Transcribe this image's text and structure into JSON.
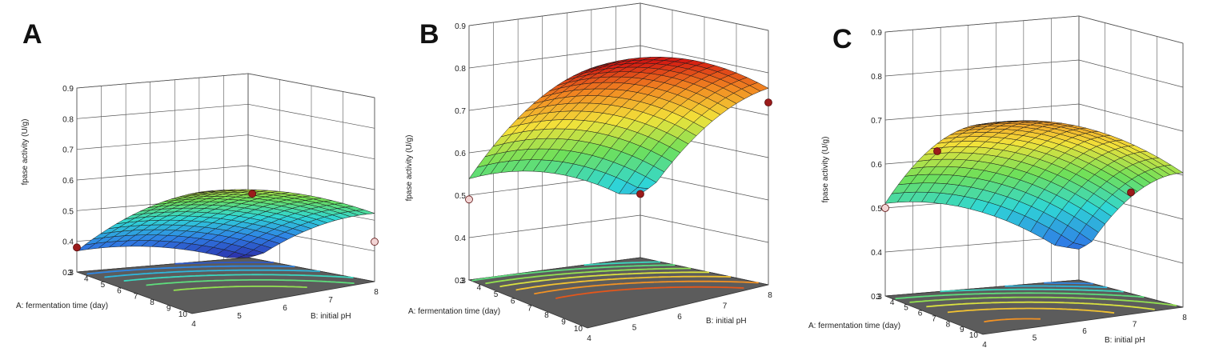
{
  "colors": {
    "floor": "#5c5c5c",
    "grid": "#555555",
    "design_point_above": "#9b1b1b",
    "design_point_below": "#f2d4d4",
    "colormap": [
      "#2b2ba8",
      "#2f7fe6",
      "#2fd6d6",
      "#6fe05a",
      "#f2e23a",
      "#f28a22",
      "#d41a12"
    ]
  },
  "chart_data": [
    {
      "panel_label": "A",
      "type": "surface3d",
      "zlabel": "fpase activity (U/g)",
      "xlabel": "A: fermentation time (day)",
      "ylabel": "B: initial pH",
      "z_ticks": [
        "0.3",
        "0.4",
        "0.5",
        "0.6",
        "0.7",
        "0.8",
        "0.9"
      ],
      "x_ticks": [
        "3",
        "4",
        "5",
        "6",
        "7",
        "8",
        "9",
        "10"
      ],
      "y_ticks": [
        "4",
        "5",
        "6",
        "7",
        "8"
      ],
      "zlim": [
        0.3,
        0.9
      ],
      "xlim": [
        3,
        10
      ],
      "ylim": [
        4,
        8
      ],
      "colorlim": [
        0.3,
        0.85
      ],
      "corners": {
        "x3_y4": 0.34,
        "x3_y8": 0.56,
        "x10_y4": 0.3,
        "x10_y8": 0.49
      },
      "max_point": {
        "x": 5.2,
        "y": 6.8,
        "z": 0.58
      },
      "design_points": [
        {
          "x": 3,
          "y": 4,
          "z": 0.38,
          "above": true
        },
        {
          "x": 5,
          "y": 8,
          "z": 0.62,
          "above": true
        },
        {
          "x": 10,
          "y": 8,
          "z": 0.43,
          "above": false
        }
      ]
    },
    {
      "panel_label": "B",
      "type": "surface3d",
      "zlabel": "fpase activity (U/g)",
      "xlabel": "A: fermentation time (day)",
      "ylabel": "B: initial pH",
      "z_ticks": [
        "0.3",
        "0.4",
        "0.5",
        "0.6",
        "0.7",
        "0.8",
        "0.9"
      ],
      "x_ticks": [
        "3",
        "4",
        "5",
        "6",
        "7",
        "8",
        "9",
        "10"
      ],
      "y_ticks": [
        "4",
        "5",
        "6",
        "7",
        "8"
      ],
      "zlim": [
        0.3,
        0.9
      ],
      "xlim": [
        3,
        10
      ],
      "ylim": [
        4,
        8
      ],
      "colorlim": [
        0.3,
        0.85
      ],
      "corners": {
        "x3_y4": 0.5,
        "x3_y8": 0.76,
        "x10_y4": 0.45,
        "x10_y8": 0.72
      },
      "max_point": {
        "x": 5.2,
        "y": 6.8,
        "z": 0.81
      },
      "design_points": [
        {
          "x": 3,
          "y": 4,
          "z": 0.49,
          "above": false
        },
        {
          "x": 10,
          "y": 4,
          "z": 0.45,
          "above": true
        },
        {
          "x": 10,
          "y": 8,
          "z": 0.73,
          "above": true
        }
      ]
    },
    {
      "panel_label": "C",
      "type": "surface3d",
      "zlabel": "fpase activity (U/g)",
      "xlabel": "A: fermentation time (day)",
      "ylabel": "B: initial pH",
      "z_ticks": [
        "0.3",
        "0.4",
        "0.5",
        "0.6",
        "0.7",
        "0.8",
        "0.9"
      ],
      "x_ticks": [
        "3",
        "4",
        "5",
        "6",
        "7",
        "8",
        "9",
        "10"
      ],
      "y_ticks": [
        "4",
        "5",
        "6",
        "7",
        "8"
      ],
      "zlim": [
        0.3,
        0.9
      ],
      "xlim": [
        3,
        10
      ],
      "ylim": [
        4,
        8
      ],
      "colorlim": [
        0.3,
        0.85
      ],
      "corners": {
        "x3_y4": 0.47,
        "x3_y8": 0.64,
        "x10_y4": 0.37,
        "x10_y8": 0.56
      },
      "max_point": {
        "x": 5.2,
        "y": 6.8,
        "z": 0.71
      },
      "design_points": [
        {
          "x": 3,
          "y": 4,
          "z": 0.5,
          "above": false
        },
        {
          "x": 3,
          "y": 6,
          "z": 0.66,
          "above": true
        },
        {
          "x": 10,
          "y": 6,
          "z": 0.53,
          "above": true
        }
      ]
    }
  ]
}
